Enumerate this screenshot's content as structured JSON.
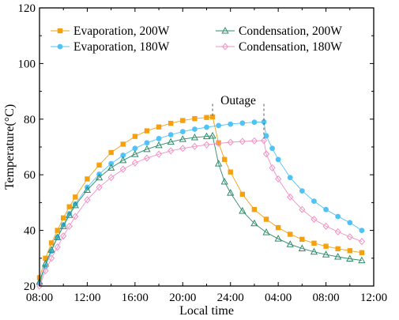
{
  "chart_data": {
    "type": "line",
    "xlabel": "Local time",
    "ylabel": "Temperature(°C)",
    "xlim": [
      8,
      36
    ],
    "ylim": [
      20,
      120
    ],
    "x_ticks": [
      {
        "value": 8,
        "label": "08:00"
      },
      {
        "value": 12,
        "label": "12:00"
      },
      {
        "value": 16,
        "label": "16:00"
      },
      {
        "value": 20,
        "label": "20:00"
      },
      {
        "value": 24,
        "label": "24:00"
      },
      {
        "value": 28,
        "label": "04:00"
      },
      {
        "value": 32,
        "label": "08:00"
      },
      {
        "value": 36,
        "label": "12:00"
      }
    ],
    "y_ticks": [
      20,
      40,
      60,
      80,
      100,
      120
    ],
    "grid": false,
    "legend_placement": "top",
    "annotation": {
      "text": "Outage",
      "markers_x": [
        22.5,
        26.8
      ]
    },
    "series": [
      {
        "name": "Evaporation, 200W",
        "color": "#F5A00F",
        "marker": "square",
        "x": [
          8.0,
          8.5,
          9.0,
          9.5,
          10.0,
          10.5,
          11.0,
          12.0,
          13.0,
          14.0,
          15.0,
          16.0,
          17.0,
          18.0,
          19.0,
          20.0,
          21.0,
          22.0,
          22.5,
          23.0,
          23.5,
          24.0,
          25.0,
          26.0,
          27.0,
          28.0,
          29.0,
          30.0,
          31.0,
          32.0,
          33.0,
          34.0,
          35.0
        ],
        "y": [
          23.0,
          30.0,
          35.5,
          40.0,
          44.5,
          48.5,
          52.0,
          58.5,
          63.5,
          68.0,
          71.0,
          73.8,
          75.8,
          77.2,
          78.5,
          79.5,
          80.2,
          80.6,
          80.8,
          71.5,
          65.5,
          61.0,
          53.0,
          47.5,
          44.0,
          41.0,
          38.6,
          36.8,
          35.4,
          34.3,
          33.4,
          32.7,
          32.0
        ]
      },
      {
        "name": "Evaporation, 180W",
        "color": "#4FC3F7",
        "marker": "circle",
        "x": [
          8.0,
          8.5,
          9.0,
          9.5,
          10.0,
          10.5,
          11.0,
          12.0,
          13.0,
          14.0,
          15.0,
          16.0,
          17.0,
          18.0,
          19.0,
          20.0,
          21.0,
          22.0,
          23.0,
          24.0,
          25.0,
          26.0,
          26.8,
          27.0,
          27.5,
          28.0,
          29.0,
          30.0,
          31.0,
          32.0,
          33.0,
          34.0,
          35.0
        ],
        "y": [
          21.0,
          27.0,
          32.5,
          37.5,
          42.0,
          46.0,
          49.5,
          55.5,
          60.2,
          64.0,
          67.0,
          69.5,
          71.5,
          73.0,
          74.4,
          75.5,
          76.4,
          77.1,
          77.7,
          78.2,
          78.6,
          78.9,
          79.0,
          74.0,
          69.5,
          65.5,
          59.0,
          54.2,
          50.5,
          47.5,
          45.0,
          42.8,
          40.0
        ]
      },
      {
        "name": "Condensation, 200W",
        "color": "#2E8B6A",
        "marker": "triangle",
        "x": [
          8.0,
          8.5,
          9.0,
          9.5,
          10.0,
          10.5,
          11.0,
          12.0,
          13.0,
          14.0,
          15.0,
          16.0,
          17.0,
          18.0,
          19.0,
          20.0,
          21.0,
          22.0,
          22.5,
          23.0,
          23.5,
          24.0,
          25.0,
          26.0,
          27.0,
          28.0,
          29.0,
          30.0,
          31.0,
          32.0,
          33.0,
          34.0,
          35.0
        ],
        "y": [
          21.5,
          28.0,
          33.0,
          37.5,
          41.5,
          45.5,
          49.0,
          54.5,
          59.0,
          62.5,
          65.2,
          67.4,
          69.2,
          70.6,
          71.8,
          72.8,
          73.4,
          73.8,
          74.0,
          64.0,
          57.5,
          53.5,
          47.0,
          42.5,
          39.3,
          37.0,
          35.0,
          33.5,
          32.3,
          31.3,
          30.5,
          29.8,
          29.2
        ]
      },
      {
        "name": "Condensation, 180W",
        "color": "#F291C4",
        "marker": "diamond",
        "x": [
          8.0,
          8.5,
          9.0,
          9.5,
          10.0,
          10.5,
          11.0,
          12.0,
          13.0,
          14.0,
          15.0,
          16.0,
          17.0,
          18.0,
          19.0,
          20.0,
          21.0,
          22.0,
          23.0,
          24.0,
          25.0,
          26.0,
          26.8,
          27.0,
          27.5,
          28.0,
          29.0,
          30.0,
          31.0,
          32.0,
          33.0,
          34.0,
          35.0
        ],
        "y": [
          20.0,
          25.5,
          30.0,
          34.0,
          38.0,
          41.5,
          45.0,
          51.0,
          55.5,
          59.0,
          62.0,
          64.3,
          66.0,
          67.4,
          68.6,
          69.5,
          70.2,
          70.8,
          71.3,
          71.7,
          72.0,
          72.2,
          72.3,
          67.5,
          62.5,
          58.5,
          52.0,
          47.5,
          44.0,
          41.5,
          39.5,
          37.7,
          36.0
        ]
      }
    ]
  }
}
